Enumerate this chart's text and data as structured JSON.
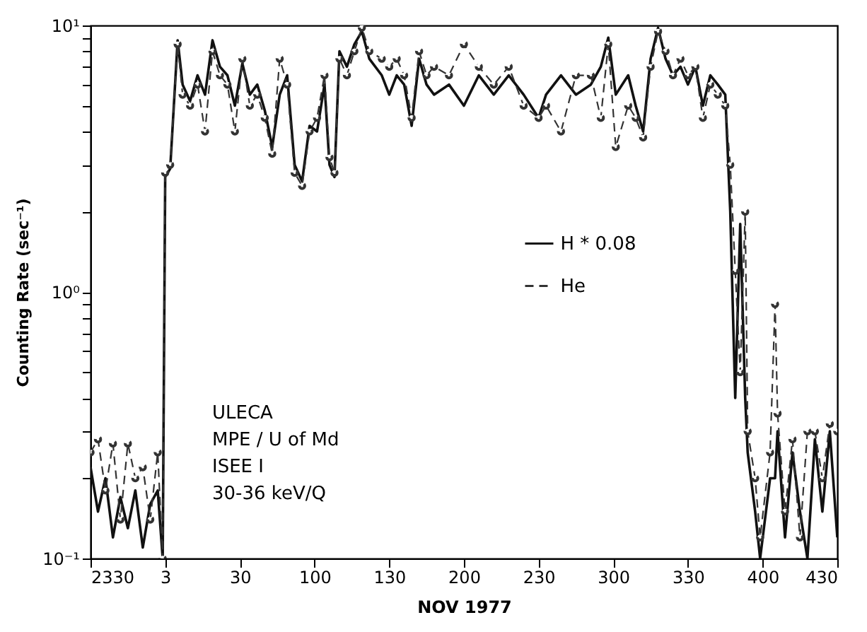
{
  "chart_data": {
    "type": "line",
    "xlabel": "NOV 1977",
    "ylabel": "Counting Rate (sec⁻¹)",
    "log": "y",
    "grid": false,
    "legend": "right",
    "annotations": [
      "ULECA",
      "MPE / U of Md",
      "ISEE I",
      "30-36 keV/Q"
    ],
    "xlim": [
      "1977-11-02T23:30",
      "1977-11-03T04:30"
    ],
    "xticks": [
      {
        "value": "1977-11-02T23:30",
        "label": "2330"
      },
      {
        "value": "1977-11-03T00:00",
        "label": "3"
      },
      {
        "value": "1977-11-03T00:30",
        "label": "30"
      },
      {
        "value": "1977-11-03T01:00",
        "label": "100"
      },
      {
        "value": "1977-11-03T01:30",
        "label": "130"
      },
      {
        "value": "1977-11-03T02:00",
        "label": "200"
      },
      {
        "value": "1977-11-03T02:30",
        "label": "230"
      },
      {
        "value": "1977-11-03T03:00",
        "label": "300"
      },
      {
        "value": "1977-11-03T03:30",
        "label": "330"
      },
      {
        "value": "1977-11-03T04:00",
        "label": "400"
      },
      {
        "value": "1977-11-03T04:30",
        "label": "430"
      }
    ],
    "ylim": [
      0.1,
      10
    ],
    "yticks": [
      {
        "value": 0.1,
        "label": "10⁻¹"
      },
      {
        "value": 0.2,
        "label": null
      },
      {
        "value": 0.3,
        "label": null
      },
      {
        "value": 0.4,
        "label": null
      },
      {
        "value": 0.5,
        "label": null
      },
      {
        "value": 0.6,
        "label": null
      },
      {
        "value": 0.7,
        "label": null
      },
      {
        "value": 0.8,
        "label": null
      },
      {
        "value": 0.9,
        "label": null
      },
      {
        "value": 1,
        "label": "10⁰"
      },
      {
        "value": 2,
        "label": null
      },
      {
        "value": 3,
        "label": null
      },
      {
        "value": 4,
        "label": null
      },
      {
        "value": 5,
        "label": null
      },
      {
        "value": 6,
        "label": null
      },
      {
        "value": 7,
        "label": null
      },
      {
        "value": 8,
        "label": null
      },
      {
        "value": 9,
        "label": null
      },
      {
        "value": 10,
        "label": "10¹"
      }
    ],
    "x": [
      "1977-11-02T23:30",
      "1977-11-02T23:33",
      "1977-11-02T23:36",
      "1977-11-02T23:39",
      "1977-11-02T23:42",
      "1977-11-02T23:45",
      "1977-11-02T23:48",
      "1977-11-02T23:51",
      "1977-11-02T23:54",
      "1977-11-02T23:57",
      "1977-11-02T23:59",
      "1977-11-03T00:00",
      "1977-11-03T00:02",
      "1977-11-03T00:05",
      "1977-11-03T00:07",
      "1977-11-03T00:10",
      "1977-11-03T00:13",
      "1977-11-03T00:16",
      "1977-11-03T00:19",
      "1977-11-03T00:22",
      "1977-11-03T00:25",
      "1977-11-03T00:28",
      "1977-11-03T00:31",
      "1977-11-03T00:34",
      "1977-11-03T00:37",
      "1977-11-03T00:40",
      "1977-11-03T00:43",
      "1977-11-03T00:46",
      "1977-11-03T00:49",
      "1977-11-03T00:52",
      "1977-11-03T00:55",
      "1977-11-03T00:58",
      "1977-11-03T01:01",
      "1977-11-03T01:04",
      "1977-11-03T01:06",
      "1977-11-03T01:08",
      "1977-11-03T01:10",
      "1977-11-03T01:13",
      "1977-11-03T01:16",
      "1977-11-03T01:19",
      "1977-11-03T01:22",
      "1977-11-03T01:27",
      "1977-11-03T01:30",
      "1977-11-03T01:33",
      "1977-11-03T01:36",
      "1977-11-03T01:39",
      "1977-11-03T01:42",
      "1977-11-03T01:45",
      "1977-11-03T01:48",
      "1977-11-03T01:54",
      "1977-11-03T02:00",
      "1977-11-03T02:06",
      "1977-11-03T02:12",
      "1977-11-03T02:18",
      "1977-11-03T02:24",
      "1977-11-03T02:30",
      "1977-11-03T02:33",
      "1977-11-03T02:39",
      "1977-11-03T02:45",
      "1977-11-03T02:51",
      "1977-11-03T02:55",
      "1977-11-03T02:58",
      "1977-11-03T03:01",
      "1977-11-03T03:06",
      "1977-11-03T03:09",
      "1977-11-03T03:12",
      "1977-11-03T03:15",
      "1977-11-03T03:18",
      "1977-11-03T03:21",
      "1977-11-03T03:24",
      "1977-11-03T03:27",
      "1977-11-03T03:30",
      "1977-11-03T03:33",
      "1977-11-03T03:36",
      "1977-11-03T03:39",
      "1977-11-03T03:42",
      "1977-11-03T03:45",
      "1977-11-03T03:47",
      "1977-11-03T03:49",
      "1977-11-03T03:51",
      "1977-11-03T03:53",
      "1977-11-03T03:54",
      "1977-11-03T03:57",
      "1977-11-03T03:59",
      "1977-11-03T04:03",
      "1977-11-03T04:05",
      "1977-11-03T04:06",
      "1977-11-03T04:09",
      "1977-11-03T04:12",
      "1977-11-03T04:15",
      "1977-11-03T04:18",
      "1977-11-03T04:21",
      "1977-11-03T04:24",
      "1977-11-03T04:27",
      "1977-11-03T04:30"
    ],
    "series": [
      {
        "name": "H * 0.08",
        "color": "#111111",
        "line_style": "solid",
        "marker": "none",
        "values": [
          0.22,
          0.15,
          0.2,
          0.12,
          0.17,
          0.13,
          0.18,
          0.11,
          0.16,
          0.18,
          0.1,
          2.7,
          2.9,
          8.8,
          6.0,
          5.2,
          6.5,
          5.5,
          8.8,
          7.0,
          6.5,
          5.0,
          7.2,
          5.5,
          6.0,
          4.8,
          3.5,
          5.5,
          6.5,
          3.0,
          2.6,
          4.2,
          4.0,
          6.0,
          3.0,
          2.7,
          8.0,
          7.0,
          8.5,
          9.5,
          7.5,
          6.5,
          5.5,
          6.5,
          6.0,
          4.2,
          7.5,
          6.0,
          5.5,
          6.0,
          5.0,
          6.5,
          5.5,
          6.5,
          5.5,
          4.5,
          5.5,
          6.5,
          5.5,
          6.0,
          7.0,
          9.0,
          5.5,
          6.5,
          5.0,
          4.0,
          7.5,
          9.8,
          7.5,
          6.5,
          7.0,
          6.0,
          7.0,
          5.0,
          6.5,
          6.0,
          5.5,
          2.0,
          0.4,
          1.8,
          0.4,
          0.25,
          0.15,
          0.1,
          0.2,
          0.2,
          0.3,
          0.12,
          0.25,
          0.15,
          0.1,
          0.28,
          0.15,
          0.3,
          0.12
        ]
      },
      {
        "name": "He",
        "color": "#333333",
        "line_style": "dashed",
        "marker": "circle",
        "values": [
          0.25,
          0.28,
          0.18,
          0.27,
          0.14,
          0.27,
          0.2,
          0.22,
          0.14,
          0.25,
          0.1,
          2.8,
          3.0,
          8.5,
          5.5,
          5.0,
          6.0,
          4.0,
          8.0,
          6.5,
          6.0,
          4.0,
          7.5,
          5.0,
          5.5,
          4.5,
          3.3,
          7.5,
          6.0,
          2.8,
          2.5,
          4.0,
          4.5,
          6.5,
          3.2,
          2.8,
          7.5,
          6.5,
          8.0,
          9.8,
          8.0,
          7.5,
          7.0,
          7.5,
          6.5,
          4.5,
          8.0,
          6.5,
          7.0,
          6.5,
          8.5,
          7.0,
          6.0,
          7.0,
          5.0,
          4.5,
          5.0,
          4.0,
          6.5,
          6.5,
          4.5,
          8.5,
          3.5,
          5.0,
          4.5,
          3.8,
          7.0,
          9.5,
          8.0,
          6.5,
          7.5,
          6.5,
          7.0,
          4.5,
          6.0,
          5.5,
          5.0,
          3.0,
          1.2,
          0.5,
          2.0,
          0.3,
          0.2,
          0.12,
          0.25,
          0.9,
          0.35,
          0.15,
          0.28,
          0.12,
          0.3,
          0.3,
          0.2,
          0.32,
          0.3
        ]
      }
    ]
  }
}
